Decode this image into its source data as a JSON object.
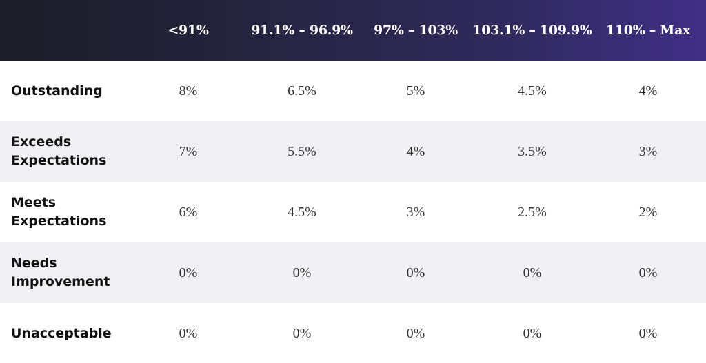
{
  "chart_data": {
    "type": "table",
    "columns": [
      "<91%",
      "91.1% – 96.9%",
      "97% – 103%",
      "103.1% – 109.9%",
      "110% – Max"
    ],
    "rows": [
      {
        "label": "Outstanding",
        "values": [
          "8%",
          "6.5%",
          "5%",
          "4.5%",
          "4%"
        ]
      },
      {
        "label": "Exceeds Expectations",
        "values": [
          "7%",
          "5.5%",
          "4%",
          "3.5%",
          "3%"
        ]
      },
      {
        "label": "Meets Expectations",
        "values": [
          "6%",
          "4.5%",
          "3%",
          "2.5%",
          "2%"
        ]
      },
      {
        "label": "Needs Improvement",
        "values": [
          "0%",
          "0%",
          "0%",
          "0%",
          "0%"
        ]
      },
      {
        "label": "Unacceptable",
        "values": [
          "0%",
          "0%",
          "0%",
          "0%",
          "0%"
        ]
      }
    ]
  },
  "colors": {
    "header_start": "#1c1d27",
    "header_end": "#3f2f86",
    "alt_row": "#f1f1f5",
    "text_dark": "#111111"
  }
}
